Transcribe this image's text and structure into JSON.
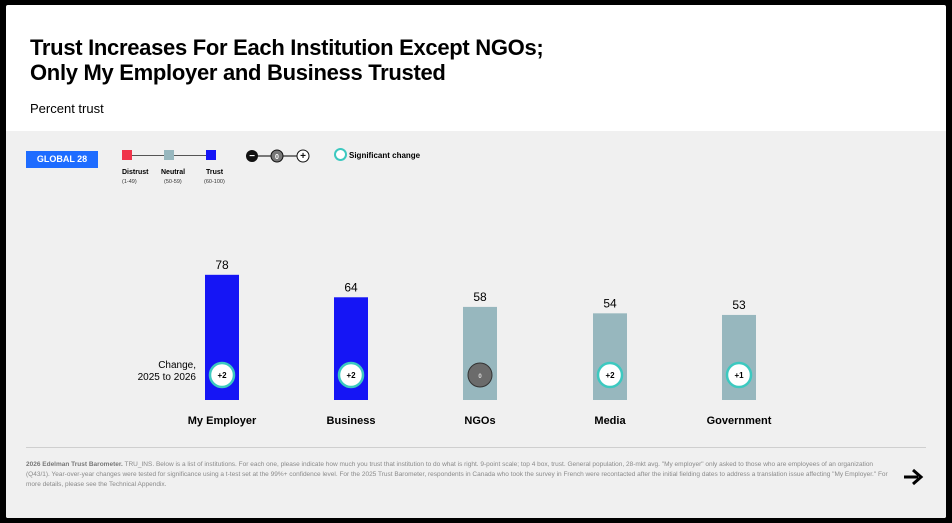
{
  "header": {
    "title_lines": [
      "Trust Increases For Each Institution Except NGOs;",
      "Only My Employer and Business Trusted"
    ],
    "subtitle": "Percent trust"
  },
  "legend": {
    "badge": "GLOBAL 28",
    "scale": [
      {
        "label": "Distrust",
        "range": "(1-49)",
        "color": "#f0344a"
      },
      {
        "label": "Neutral",
        "range": "(50-59)",
        "color": "#97b7be"
      },
      {
        "label": "Trust",
        "range": "(60-100)",
        "color": "#1515f5"
      }
    ],
    "change_marker": {
      "minus": "−",
      "zero": "0",
      "plus": "+"
    },
    "significant_label": "Significant change",
    "significant_color": "#3cc9c0"
  },
  "chart_data": {
    "type": "bar",
    "categories": [
      "My Employer",
      "Business",
      "NGOs",
      "Media",
      "Government"
    ],
    "values": [
      78,
      64,
      58,
      54,
      53
    ],
    "changes": [
      "+2",
      "+2",
      "0",
      "+2",
      "+1"
    ],
    "significant": [
      true,
      true,
      false,
      true,
      true
    ],
    "bar_colors": [
      "#1515f5",
      "#1515f5",
      "#97b7be",
      "#97b7be",
      "#97b7be"
    ],
    "change_label_lines": [
      "Change,",
      "2025 to 2026"
    ],
    "ylim": [
      0,
      100
    ]
  },
  "footer": {
    "source_bold": "2026 Edelman Trust Barometer.",
    "source_text": " TRU_INS. Below is a list of institutions. For each one, please indicate how much you trust that institution to do what is right. 9-point scale; top 4 box, trust. General population, 28-mkt avg. \"My employer\" only asked to those who are employees of an organization (Q43/1). Year-over-year changes were tested for significance using a t-test set at the 99%+ confidence level. For the 2025 Trust Barometer, respondents in Canada who took the survey in French were recontacted after the initial fielding dates to address a translation issue affecting \"My Employer.\" For more details, please see the Technical Appendix.",
    "next_icon": "right-arrow-icon"
  }
}
